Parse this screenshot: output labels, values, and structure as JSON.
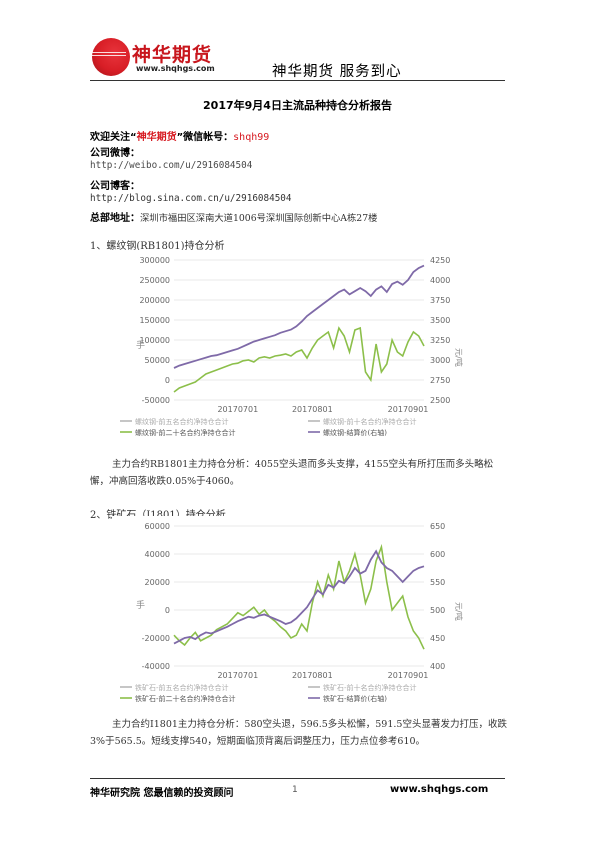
{
  "header": {
    "logo_name": "神华期货",
    "logo_url": "www.shqhgs.com",
    "slogan": "神华期货   服务到心"
  },
  "doc_title": "2017年9月4日主流品种持仓分析报告",
  "contact": {
    "follow_prefix": "欢迎关注“",
    "follow_brand": "神华期货",
    "follow_suffix": "”微信帐号：",
    "wechat_id": "shqh99",
    "weibo_label": "公司微博：",
    "weibo_url": "http://weibo.com/u/2916084504",
    "blog_label": "公司博客：",
    "blog_url": "http://blog.sina.com.cn/u/2916084504",
    "address_label": "总部地址：",
    "address": "深圳市福田区深南大道1006号深圳国际创新中心A栋27楼"
  },
  "sections": [
    {
      "heading": "1、螺纹钢(RB1801)持仓分析",
      "analysis": "主力合约RB1801主力持仓分析：4055空头退而多头支撑，4155空头有所打压而多头略松懈，冲高回落收跌0.05%于4060。"
    },
    {
      "heading": "2、铁矿石（I1801）持仓分析",
      "analysis": "主力合约I1801主力持仓分析：580空头退，596.5多头松懈，591.5空头显著发力打压，收跌3%于565.5。短线支撑540，短期面临顶背离后调整压力，压力点位参考610。"
    }
  ],
  "chart_data": [
    {
      "type": "line",
      "x_ticks": [
        "20170701",
        "20170801",
        "20170901"
      ],
      "y_left_ticks": [
        "-50000",
        "0",
        "50000",
        "100000",
        "150000",
        "200000",
        "250000",
        "300000"
      ],
      "y_left_label": "手",
      "y_left_range": [
        -50000,
        300000
      ],
      "y_right_ticks": [
        "2500",
        "2750",
        "3000",
        "3250",
        "3500",
        "3750",
        "4000",
        "4250"
      ],
      "y_right_label": "元/吨",
      "y_right_range": [
        2500,
        4250
      ],
      "legend": [
        "螺纹钢-前五名合约净持仓合计",
        "螺纹钢-前十名合约净持仓合计",
        "螺纹钢-前二十名合约净持仓合计",
        "螺纹钢-结算价(右轴)"
      ],
      "legend_position": "bottom",
      "series": [
        {
          "name": "螺纹钢-前二十名合约净持仓合计",
          "axis": "left",
          "color": "#8cbf4a",
          "values": [
            -30000,
            -20000,
            -15000,
            -10000,
            -5000,
            5000,
            15000,
            20000,
            25000,
            30000,
            35000,
            40000,
            42000,
            48000,
            50000,
            45000,
            55000,
            58000,
            55000,
            60000,
            62000,
            65000,
            60000,
            70000,
            75000,
            55000,
            80000,
            100000,
            110000,
            120000,
            80000,
            130000,
            110000,
            70000,
            125000,
            130000,
            20000,
            0,
            90000,
            20000,
            40000,
            100000,
            70000,
            60000,
            95000,
            120000,
            110000,
            85000
          ]
        },
        {
          "name": "螺纹钢-结算价(右轴)",
          "axis": "right",
          "color": "#7f6aa8",
          "values": [
            2900,
            2930,
            2950,
            2970,
            2990,
            3010,
            3030,
            3050,
            3060,
            3080,
            3100,
            3120,
            3140,
            3170,
            3200,
            3230,
            3250,
            3270,
            3290,
            3310,
            3340,
            3360,
            3380,
            3420,
            3480,
            3550,
            3600,
            3650,
            3700,
            3750,
            3800,
            3850,
            3880,
            3820,
            3860,
            3900,
            3860,
            3800,
            3880,
            3920,
            3850,
            3950,
            3980,
            3940,
            4000,
            4100,
            4150,
            4180
          ]
        }
      ]
    },
    {
      "type": "line",
      "x_ticks": [
        "20170701",
        "20170801",
        "20170901"
      ],
      "y_left_ticks": [
        "-40000",
        "-20000",
        "0",
        "20000",
        "40000",
        "60000"
      ],
      "y_left_label": "手",
      "y_left_range": [
        -40000,
        60000
      ],
      "y_right_ticks": [
        "400",
        "450",
        "500",
        "550",
        "600",
        "650"
      ],
      "y_right_label": "元/吨",
      "y_right_range": [
        400,
        650
      ],
      "legend": [
        "铁矿石-前五名合约净持仓合计",
        "铁矿石-前十名合约净持仓合计",
        "铁矿石-前二十名合约净持仓合计",
        "铁矿石-结算价(右轴)"
      ],
      "legend_position": "bottom",
      "series": [
        {
          "name": "铁矿石-前二十名合约净持仓合计",
          "axis": "left",
          "color": "#8cbf4a",
          "values": [
            -18000,
            -22000,
            -25000,
            -20000,
            -16000,
            -22000,
            -20000,
            -18000,
            -14000,
            -12000,
            -10000,
            -6000,
            -2000,
            -4000,
            -1000,
            2000,
            -3000,
            0,
            -5000,
            -8000,
            -12000,
            -15000,
            -20000,
            -18000,
            -10000,
            -15000,
            5000,
            20000,
            10000,
            25000,
            15000,
            35000,
            20000,
            28000,
            40000,
            25000,
            5000,
            15000,
            35000,
            45000,
            20000,
            0,
            5000,
            10000,
            -5000,
            -15000,
            -20000,
            -28000
          ]
        },
        {
          "name": "铁矿石-结算价(右轴)",
          "axis": "right",
          "color": "#7f6aa8",
          "values": [
            440,
            445,
            450,
            452,
            448,
            455,
            460,
            458,
            462,
            466,
            470,
            475,
            480,
            484,
            488,
            486,
            490,
            492,
            488,
            484,
            480,
            475,
            478,
            485,
            495,
            505,
            520,
            535,
            528,
            545,
            540,
            552,
            548,
            560,
            575,
            565,
            570,
            590,
            605,
            585,
            575,
            570,
            560,
            550,
            560,
            570,
            575,
            578
          ]
        }
      ]
    }
  ],
  "footer": {
    "left": "神华研究院   您最信赖的投资顾问",
    "page": "1",
    "right": "www.shqhgs.com"
  }
}
